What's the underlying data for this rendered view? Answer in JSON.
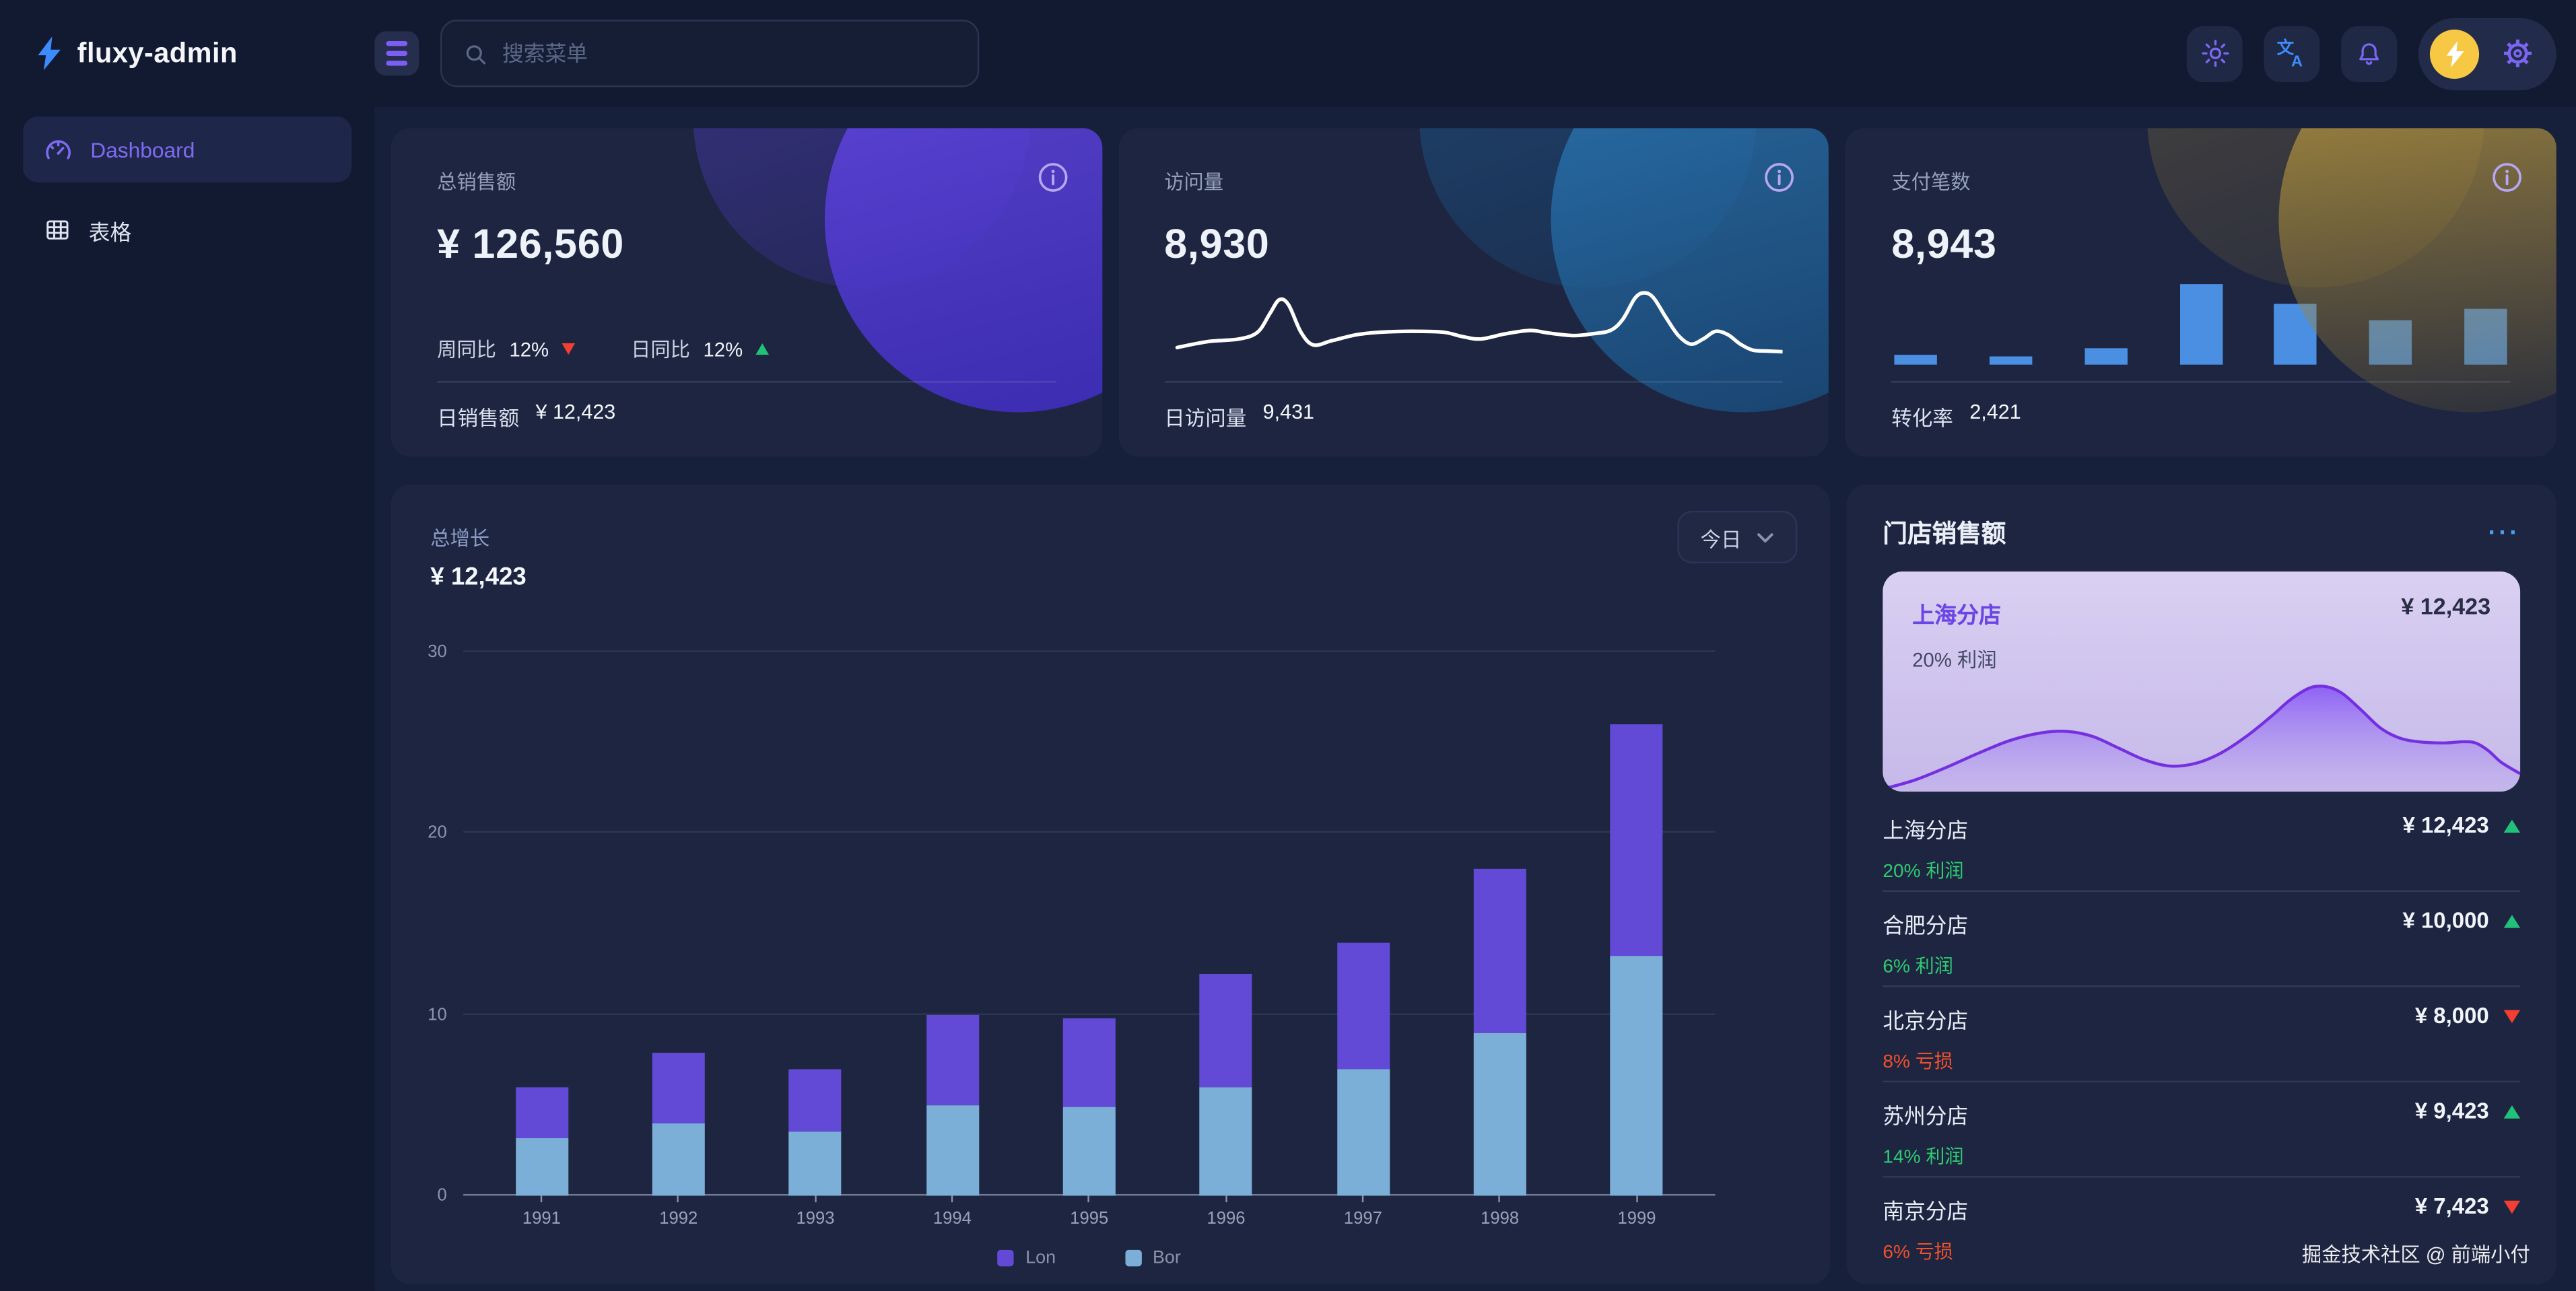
{
  "brand": {
    "name": "fluxy-admin",
    "logo_icon": "lightning-bolt"
  },
  "topbar": {
    "search": {
      "placeholder": "搜索菜单",
      "icon": "search",
      "value": ""
    },
    "actions": {
      "theme": {
        "icon": "sun"
      },
      "language": {
        "icon": "translate"
      },
      "notifications": {
        "icon": "bell"
      },
      "user": {
        "icon": "lightning-avatar",
        "avatar_bg": "#f6c844"
      },
      "settings": {
        "icon": "gear"
      }
    }
  },
  "sidebar": {
    "items": [
      {
        "label": "Dashboard",
        "icon": "gauge",
        "active": true
      },
      {
        "label": "表格",
        "icon": "table",
        "active": false
      }
    ]
  },
  "stat_cards": [
    {
      "title": "总销售额",
      "value": "¥ 126,560",
      "metrics": [
        {
          "label": "周同比",
          "value": "12%",
          "trend": "down"
        },
        {
          "label": "日同比",
          "value": "12%",
          "trend": "up"
        }
      ],
      "footer_label": "日销售额",
      "footer_value": "¥ 12,423",
      "accent": "purple"
    },
    {
      "title": "访问量",
      "value": "8,930",
      "footer_label": "日访问量",
      "footer_value": "9,431",
      "accent": "blue"
    },
    {
      "title": "支付笔数",
      "value": "8,943",
      "footer_label": "转化率",
      "footer_value": "2,421",
      "accent": "gold"
    }
  ],
  "growth_card": {
    "title": "总增长",
    "value": "¥ 12,423",
    "range_selector": {
      "label": "今日",
      "icon": "chevron-down"
    }
  },
  "store_card": {
    "title": "门店销售额",
    "more_glyph": "···",
    "highlight": {
      "name": "上海分店",
      "value": "¥ 12,423",
      "note": "20% 利润"
    },
    "items": [
      {
        "name": "上海分店",
        "note": "20% 利润",
        "value": "¥ 12,423",
        "trend": "up"
      },
      {
        "name": "合肥分店",
        "note": "6% 利润",
        "value": "¥ 10,000",
        "trend": "up"
      },
      {
        "name": "北京分店",
        "note": "8% 亏损",
        "value": "¥ 8,000",
        "trend": "down"
      },
      {
        "name": "苏州分店",
        "note": "14% 利润",
        "value": "¥ 9,423",
        "trend": "up"
      },
      {
        "name": "南京分店",
        "note": "6% 亏损",
        "value": "¥ 7,423",
        "trend": "down"
      }
    ],
    "watermark": "掘金技术社区 @ 前端小付"
  },
  "chart_data": [
    {
      "id": "growth",
      "type": "bar",
      "stacked": true,
      "title": "总增长",
      "categories": [
        "1991",
        "1992",
        "1993",
        "1994",
        "1995",
        "1996",
        "1997",
        "1998",
        "1999"
      ],
      "series": [
        {
          "name": "Lon",
          "color": "#624ad6",
          "values": [
            2.8,
            3.9,
            3.5,
            5.0,
            4.9,
            6.2,
            7.0,
            9.0,
            12.8
          ]
        },
        {
          "name": "Bor",
          "color": "#7cafd8",
          "values": [
            3.2,
            4.0,
            3.5,
            5.0,
            4.9,
            6.0,
            7.0,
            9.0,
            13.2
          ]
        }
      ],
      "ylim": [
        0,
        30
      ],
      "yticks": [
        0,
        10,
        20,
        30
      ],
      "grid": true,
      "legend_position": "bottom"
    },
    {
      "id": "visits_spark",
      "type": "line",
      "color": "#ffffff",
      "points": [
        [
          2,
          80
        ],
        [
          7,
          73
        ],
        [
          12,
          70
        ],
        [
          15,
          62
        ],
        [
          17,
          40
        ],
        [
          18.5,
          24
        ],
        [
          20,
          30
        ],
        [
          22,
          62
        ],
        [
          24,
          77
        ],
        [
          27,
          72
        ],
        [
          31,
          65
        ],
        [
          35,
          62
        ],
        [
          40,
          61
        ],
        [
          45,
          62
        ],
        [
          48,
          67
        ],
        [
          51,
          70
        ],
        [
          55,
          64
        ],
        [
          59,
          60
        ],
        [
          62,
          63
        ],
        [
          66,
          66
        ],
        [
          69,
          64
        ],
        [
          72,
          60
        ],
        [
          74,
          47
        ],
        [
          76,
          22
        ],
        [
          77.5,
          16
        ],
        [
          79,
          22
        ],
        [
          81,
          45
        ],
        [
          83,
          66
        ],
        [
          85,
          76
        ],
        [
          87,
          70
        ],
        [
          89,
          61
        ],
        [
          91,
          65
        ],
        [
          93,
          76
        ],
        [
          95,
          83
        ],
        [
          97,
          84
        ],
        [
          100,
          85
        ]
      ]
    },
    {
      "id": "payments_mini",
      "type": "bar",
      "color": "#4b8fe2",
      "values": [
        13,
        10,
        21,
        98,
        74,
        55,
        68
      ]
    },
    {
      "id": "store_area",
      "type": "area",
      "line_color": "#7430e0",
      "fill_colors": [
        "#8b5cf6",
        "#c3b5ec"
      ],
      "points": [
        [
          0,
          98
        ],
        [
          5,
          91
        ],
        [
          10,
          81
        ],
        [
          15,
          70
        ],
        [
          20,
          60
        ],
        [
          25,
          54
        ],
        [
          29,
          53
        ],
        [
          33,
          57
        ],
        [
          37,
          66
        ],
        [
          41,
          75
        ],
        [
          45,
          80
        ],
        [
          49,
          78
        ],
        [
          53,
          70
        ],
        [
          57,
          57
        ],
        [
          61,
          41
        ],
        [
          64,
          28
        ],
        [
          67,
          19
        ],
        [
          69.5,
          18
        ],
        [
          72,
          23
        ],
        [
          75,
          36
        ],
        [
          78,
          50
        ],
        [
          81,
          58
        ],
        [
          84,
          61
        ],
        [
          88,
          62
        ],
        [
          91,
          61
        ],
        [
          93,
          62
        ],
        [
          95,
          68
        ],
        [
          97,
          77
        ],
        [
          100,
          86
        ]
      ]
    }
  ],
  "colors": {
    "accent_purple": "#6e52e8",
    "bar_purple": "#624ad6",
    "bar_blue": "#7cafd8",
    "mini_bar_blue": "#4b8fe2",
    "up_green": "#21c179",
    "down_red": "#f23f31",
    "loss_red": "#f2502c",
    "profit_green": "#2fcb71",
    "avatar_yellow": "#f6c844"
  }
}
